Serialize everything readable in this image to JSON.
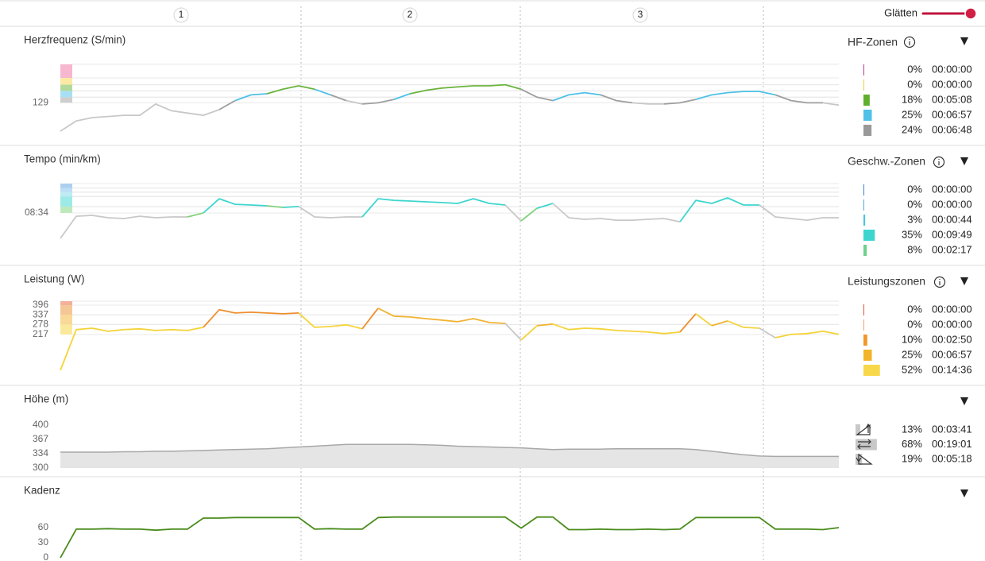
{
  "laps": [
    "1",
    "2",
    "3"
  ],
  "smoothing": {
    "label": "Glätten"
  },
  "chart_data": [
    {
      "type": "line",
      "title": "Herzfrequenz (S/min)",
      "ylim": [
        95,
        165
      ],
      "yticks": [
        129
      ],
      "base_color": "#c8c8c8",
      "zones": [
        {
          "from": 129,
          "to": 134,
          "color": "#9e9e9e"
        },
        {
          "from": 134,
          "to": 139.5,
          "color": "#4fc1e9"
        },
        {
          "from": 139.5,
          "to": 145,
          "color": "#6ab43c"
        },
        {
          "from": 145,
          "to": 151,
          "color": "#f5d64a"
        },
        {
          "from": 151,
          "to": 163,
          "color": "#ee6fa0"
        }
      ],
      "values": [
        104,
        113,
        116,
        117,
        118,
        118,
        128,
        122,
        120,
        118,
        123,
        131,
        136,
        137,
        141,
        144,
        141,
        136,
        131,
        128,
        129,
        132,
        137,
        140,
        142,
        143,
        144,
        144,
        145,
        141,
        134,
        131,
        136,
        138,
        136,
        131,
        129,
        128,
        128,
        129,
        132,
        136,
        138,
        139,
        139,
        136,
        131,
        129,
        129,
        127
      ],
      "summary": {
        "title": "HF-Zonen",
        "values": [
          0,
          0,
          18,
          25,
          24
        ],
        "value_labels": [
          "0%",
          "0%",
          "18%",
          "25%",
          "24%"
        ],
        "times": [
          "00:00:00",
          "00:00:00",
          "00:05:08",
          "00:06:57",
          "00:06:48"
        ],
        "colors": [
          "#c0399a",
          "#e8cf3f",
          "#5fae2e",
          "#4fc1e9",
          "#999999"
        ]
      }
    },
    {
      "type": "line",
      "title": "Tempo (min/km)",
      "ylim": [
        12,
        6
      ],
      "yticks": [
        {
          "value": 8.567,
          "label": "08:34"
        }
      ],
      "base_color": "#c8c8c8",
      "zones": [
        {
          "from": 8.05,
          "to": 8.57,
          "color": "#7ed37a"
        },
        {
          "from": 7.2,
          "to": 8.05,
          "color": "#3dd6cf"
        },
        {
          "from": 6.85,
          "to": 7.2,
          "color": "#7fd8ea"
        },
        {
          "from": 6.5,
          "to": 6.85,
          "color": "#7cc0ec"
        },
        {
          "from": 6.13,
          "to": 6.5,
          "color": "#5aa0dc"
        }
      ],
      "values": [
        10.68,
        8.84,
        8.77,
        8.97,
        9.03,
        8.84,
        8.97,
        8.9,
        8.9,
        8.57,
        7.39,
        7.85,
        7.91,
        7.98,
        8.11,
        8.04,
        8.9,
        8.97,
        8.9,
        8.9,
        7.39,
        7.52,
        7.58,
        7.65,
        7.71,
        7.78,
        7.39,
        7.78,
        7.91,
        9.23,
        8.18,
        7.78,
        8.97,
        9.1,
        9.03,
        9.17,
        9.17,
        9.1,
        9.03,
        9.3,
        7.52,
        7.78,
        7.32,
        7.91,
        7.91,
        8.9,
        9.03,
        9.17,
        8.97,
        8.97
      ],
      "summary": {
        "title": "Geschw.-Zonen",
        "values": [
          0,
          0,
          3,
          35,
          8
        ],
        "value_labels": [
          "0%",
          "0%",
          "3%",
          "35%",
          "8%"
        ],
        "times": [
          "00:00:00",
          "00:00:00",
          "00:00:44",
          "00:09:49",
          "00:02:17"
        ],
        "colors": [
          "#3a82d0",
          "#4ea6e0",
          "#49c6dd",
          "#3dd6cf",
          "#6cd28a"
        ]
      }
    },
    {
      "type": "line",
      "title": "Leistung (W)",
      "ylim": [
        0,
        420
      ],
      "yticks": [
        217,
        278,
        337,
        396
      ],
      "base_color": "#c8c8c8",
      "zones": [
        {
          "from": 217,
          "to": 278,
          "color": "#f5d33a"
        },
        {
          "from": 278,
          "to": 337,
          "color": "#f2b332"
        },
        {
          "from": 337,
          "to": 396,
          "color": "#ee8f2e"
        },
        {
          "from": 396,
          "to": 420,
          "color": "#e8643a"
        }
      ],
      "values": [
        0,
        247,
        256,
        237,
        247,
        252,
        242,
        247,
        242,
        261,
        368,
        348,
        353,
        348,
        343,
        348,
        261,
        266,
        276,
        252,
        377,
        329,
        324,
        314,
        305,
        295,
        314,
        290,
        285,
        184,
        271,
        281,
        247,
        256,
        252,
        242,
        237,
        232,
        223,
        232,
        343,
        271,
        300,
        261,
        256,
        198,
        218,
        223,
        237,
        218
      ],
      "summary": {
        "title": "Leistungszonen",
        "values": [
          0,
          0,
          10,
          25,
          52
        ],
        "value_labels": [
          "0%",
          "0%",
          "10%",
          "25%",
          "52%"
        ],
        "times": [
          "00:00:00",
          "00:00:00",
          "00:02:50",
          "00:06:57",
          "00:14:36"
        ],
        "colors": [
          "#e0553a",
          "#f0a070",
          "#f0962a",
          "#f2b428",
          "#f8d84a"
        ]
      }
    },
    {
      "type": "area",
      "title": "Höhe (m)",
      "ylim": [
        300,
        400
      ],
      "yticks": [
        300,
        334,
        367,
        400
      ],
      "color": "#a8a8a8",
      "fill": "#e5e5e5",
      "values": [
        337,
        337,
        337,
        337,
        338,
        338,
        339,
        339,
        340,
        341,
        342,
        343,
        344,
        345,
        347,
        349,
        351,
        353,
        355,
        355,
        355,
        355,
        355,
        354,
        353,
        351,
        350,
        349,
        348,
        347,
        345,
        343,
        344,
        344,
        344,
        345,
        345,
        345,
        345,
        345,
        343,
        339,
        335,
        331,
        328,
        327,
        327,
        327,
        327,
        327
      ],
      "summary": {
        "values": [
          13,
          68,
          19
        ],
        "value_labels": [
          "13%",
          "68%",
          "19%"
        ],
        "times": [
          "00:03:41",
          "00:19:01",
          "00:05:18"
        ],
        "color": "#c8c8c8"
      }
    },
    {
      "type": "line",
      "title": "Kadenz",
      "ylim": [
        0,
        90
      ],
      "yticks": [
        0,
        30,
        60
      ],
      "color": "#4a8c1c",
      "values": [
        0,
        57,
        57,
        58,
        57,
        57,
        55,
        57,
        57,
        79,
        79,
        80,
        80,
        80,
        80,
        80,
        57,
        58,
        57,
        57,
        80,
        81,
        81,
        81,
        81,
        81,
        81,
        81,
        81,
        59,
        81,
        81,
        56,
        56,
        57,
        56,
        56,
        57,
        56,
        57,
        80,
        80,
        80,
        80,
        80,
        57,
        57,
        57,
        56,
        60
      ]
    }
  ]
}
